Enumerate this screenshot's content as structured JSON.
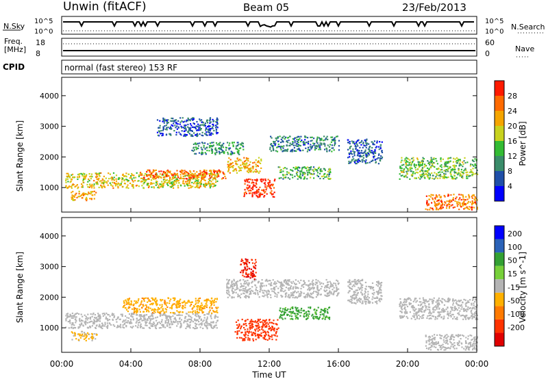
{
  "header": {
    "station": "Unwin (fitACF)",
    "beam": "Beam 05",
    "date": "23/Feb/2013"
  },
  "status_panels": {
    "nsky_label": "N.Sky",
    "nsky_ticks": [
      "10^5",
      "10^0"
    ],
    "nsearch_label": "N.Search",
    "nsearch_ticks": [
      "10^5",
      "10^0"
    ],
    "freq_label_1": "Freq.",
    "freq_label_2": "[MHz]",
    "freq_ticks": [
      "18",
      "8"
    ],
    "nave_label": "Nave",
    "nave_ticks": [
      "60",
      "0"
    ],
    "cpid_label": "CPID",
    "cpid_text": "normal (fast stereo) 153 RF"
  },
  "colors": {
    "power_scale": [
      "#0000ff",
      "#1f4fa8",
      "#3a8c6a",
      "#33bb33",
      "#c8d21e",
      "#f5a500",
      "#ff6a00",
      "#ff1a00"
    ],
    "velocity_scale": [
      "#0000ff",
      "#2a62b8",
      "#33a033",
      "#77d03a",
      "#b4b4b4",
      "#ffb000",
      "#ff7a00",
      "#ff3300",
      "#e00000"
    ],
    "ground_scatter": "#bdbdbd"
  },
  "chart_data": [
    {
      "type": "heatmap",
      "title": "",
      "xlabel": "",
      "ylabel": "Slant Range [km]",
      "x_ticks": [
        "00:00",
        "04:00",
        "08:00",
        "12:00",
        "16:00",
        "20:00",
        "00:00"
      ],
      "y_ticks": [
        "1000",
        "2000",
        "3000",
        "4000"
      ],
      "xlim_hours": [
        0,
        24
      ],
      "ylim_km": [
        200,
        4600
      ],
      "colorbar": {
        "label": "Power [dB]",
        "ticks": [
          "4",
          "8",
          "12",
          "16",
          "20",
          "24",
          "28"
        ],
        "range": [
          0,
          30
        ]
      },
      "regions": [
        {
          "t": [
            0.2,
            9.0
          ],
          "r": [
            1000,
            1500
          ],
          "value": 18
        },
        {
          "t": [
            4.5,
            9.5
          ],
          "r": [
            1300,
            1600
          ],
          "value": 24
        },
        {
          "t": [
            9.5,
            11.5
          ],
          "r": [
            1500,
            2000
          ],
          "value": 20
        },
        {
          "t": [
            10.5,
            12.3
          ],
          "r": [
            700,
            1300
          ],
          "value": 28
        },
        {
          "t": [
            7.5,
            10.5
          ],
          "r": [
            2100,
            2500
          ],
          "value": 10
        },
        {
          "t": [
            12.0,
            16.0
          ],
          "r": [
            2200,
            2700
          ],
          "value": 8
        },
        {
          "t": [
            12.5,
            15.5
          ],
          "r": [
            1300,
            1700
          ],
          "value": 12
        },
        {
          "t": [
            16.5,
            18.5
          ],
          "r": [
            1800,
            2600
          ],
          "value": 6
        },
        {
          "t": [
            19.5,
            24.0
          ],
          "r": [
            1300,
            2000
          ],
          "value": 14
        },
        {
          "t": [
            21.0,
            24.0
          ],
          "r": [
            300,
            800
          ],
          "value": 24
        },
        {
          "t": [
            0.5,
            2.0
          ],
          "r": [
            600,
            900
          ],
          "value": 20
        },
        {
          "t": [
            5.5,
            9.0
          ],
          "r": [
            2700,
            3300
          ],
          "value": 6
        }
      ]
    },
    {
      "type": "heatmap",
      "title": "",
      "xlabel": "Time UT",
      "ylabel": "Slant Range [km]",
      "x_ticks": [
        "00:00",
        "04:00",
        "08:00",
        "12:00",
        "16:00",
        "20:00",
        "00:00"
      ],
      "y_ticks": [
        "1000",
        "2000",
        "3000",
        "4000"
      ],
      "xlim_hours": [
        0,
        24
      ],
      "ylim_km": [
        200,
        4600
      ],
      "colorbar": {
        "label": "Velocity [m s^-1]",
        "ticks": [
          "200",
          "100",
          "50",
          "15",
          "-15",
          "-50",
          "-100",
          "-200"
        ],
        "range": [
          -250,
          250
        ]
      },
      "regions": [
        {
          "t": [
            0.2,
            9.0
          ],
          "r": [
            1000,
            1500
          ],
          "value": 0
        },
        {
          "t": [
            3.5,
            9.0
          ],
          "r": [
            1500,
            2000
          ],
          "value": -40
        },
        {
          "t": [
            9.5,
            16.0
          ],
          "r": [
            2000,
            2600
          ],
          "value": 0
        },
        {
          "t": [
            10.0,
            12.5
          ],
          "r": [
            600,
            1300
          ],
          "value": -180
        },
        {
          "t": [
            12.5,
            15.5
          ],
          "r": [
            1300,
            1700
          ],
          "value": 60
        },
        {
          "t": [
            16.5,
            18.5
          ],
          "r": [
            1800,
            2600
          ],
          "value": 0
        },
        {
          "t": [
            19.5,
            24.0
          ],
          "r": [
            1300,
            2000
          ],
          "value": 0
        },
        {
          "t": [
            21.0,
            24.0
          ],
          "r": [
            300,
            800
          ],
          "value": 0
        },
        {
          "t": [
            10.3,
            11.2
          ],
          "r": [
            2600,
            3300
          ],
          "value": -200
        },
        {
          "t": [
            0.5,
            2.0
          ],
          "r": [
            600,
            900
          ],
          "value": -20
        }
      ]
    }
  ]
}
